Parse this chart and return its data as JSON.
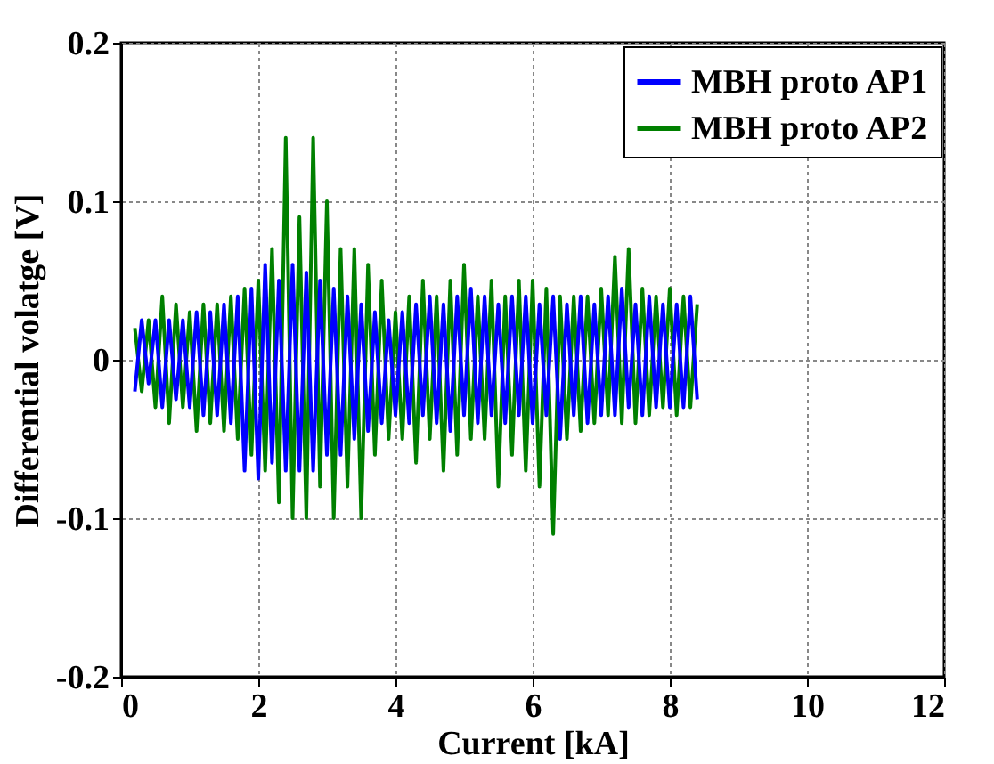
{
  "chart_data": {
    "type": "line",
    "xlabel": "Current [kA]",
    "ylabel": "Differential volatge [V]",
    "xlim": [
      0,
      12
    ],
    "xticks": [
      0,
      2,
      4,
      6,
      8,
      10,
      12
    ],
    "ylim": [
      -0.2,
      0.2
    ],
    "yticks": [
      -0.2,
      -0.1,
      0,
      0.1,
      0.2
    ],
    "grid": true,
    "legend": "top right",
    "line_style": "solid",
    "marker": "none",
    "x": [
      0.2,
      0.3,
      0.4,
      0.5,
      0.6,
      0.7,
      0.8,
      0.9,
      1.0,
      1.1,
      1.2,
      1.3,
      1.4,
      1.5,
      1.6,
      1.7,
      1.8,
      1.9,
      2.0,
      2.1,
      2.2,
      2.3,
      2.4,
      2.5,
      2.6,
      2.7,
      2.8,
      2.9,
      3.0,
      3.1,
      3.2,
      3.3,
      3.4,
      3.5,
      3.6,
      3.7,
      3.8,
      3.9,
      4.0,
      4.1,
      4.2,
      4.3,
      4.4,
      4.5,
      4.6,
      4.7,
      4.8,
      4.9,
      5.0,
      5.1,
      5.2,
      5.3,
      5.4,
      5.5,
      5.6,
      5.7,
      5.8,
      5.9,
      6.0,
      6.1,
      6.2,
      6.3,
      6.4,
      6.5,
      6.6,
      6.7,
      6.8,
      6.9,
      7.0,
      7.1,
      7.2,
      7.3,
      7.4,
      7.5,
      7.6,
      7.7,
      7.8,
      7.9,
      8.0,
      8.1,
      8.2,
      8.3,
      8.4
    ],
    "series": [
      {
        "name": "MBH proto AP1",
        "color": "#0000ff",
        "values": [
          -0.02,
          0.025,
          -0.015,
          0.025,
          -0.03,
          0.025,
          -0.025,
          0.025,
          -0.03,
          0.03,
          -0.035,
          0.03,
          -0.035,
          0.035,
          -0.04,
          0.04,
          -0.07,
          0.045,
          -0.075,
          0.06,
          -0.065,
          0.05,
          -0.07,
          0.06,
          -0.07,
          0.055,
          -0.07,
          0.05,
          -0.06,
          0.045,
          -0.06,
          0.04,
          -0.05,
          0.035,
          -0.045,
          0.03,
          -0.04,
          0.025,
          -0.035,
          0.03,
          -0.04,
          0.035,
          -0.035,
          0.04,
          -0.04,
          0.035,
          -0.045,
          0.04,
          -0.035,
          0.045,
          -0.04,
          0.04,
          -0.035,
          0.035,
          -0.04,
          0.04,
          -0.035,
          0.04,
          -0.04,
          0.035,
          -0.035,
          0.04,
          -0.05,
          0.035,
          -0.035,
          0.04,
          -0.04,
          0.035,
          -0.035,
          0.04,
          -0.035,
          0.045,
          -0.03,
          0.035,
          -0.035,
          0.04,
          -0.03,
          0.035,
          -0.03,
          0.035,
          -0.03,
          0.04,
          -0.025
        ]
      },
      {
        "name": "MBH proto AP2",
        "color": "#008000",
        "values": [
          0.02,
          -0.02,
          0.025,
          -0.03,
          0.04,
          -0.04,
          0.035,
          -0.03,
          0.03,
          -0.045,
          0.035,
          -0.04,
          0.035,
          -0.045,
          0.04,
          -0.05,
          0.045,
          -0.06,
          0.05,
          -0.07,
          0.07,
          -0.09,
          0.14,
          -0.1,
          0.09,
          -0.1,
          0.14,
          -0.08,
          0.1,
          -0.1,
          0.07,
          -0.08,
          0.07,
          -0.1,
          0.06,
          -0.06,
          0.05,
          -0.05,
          0.03,
          -0.05,
          0.04,
          -0.065,
          0.05,
          -0.05,
          0.04,
          -0.07,
          0.05,
          -0.06,
          0.06,
          -0.05,
          0.04,
          -0.05,
          0.05,
          -0.08,
          0.04,
          -0.06,
          0.05,
          -0.07,
          0.05,
          -0.08,
          0.045,
          -0.11,
          0.04,
          -0.05,
          0.04,
          -0.045,
          0.04,
          -0.04,
          0.045,
          -0.035,
          0.065,
          -0.04,
          0.07,
          -0.04,
          0.045,
          -0.035,
          0.04,
          -0.03,
          0.045,
          -0.035,
          0.04,
          -0.03,
          0.035
        ]
      }
    ]
  }
}
